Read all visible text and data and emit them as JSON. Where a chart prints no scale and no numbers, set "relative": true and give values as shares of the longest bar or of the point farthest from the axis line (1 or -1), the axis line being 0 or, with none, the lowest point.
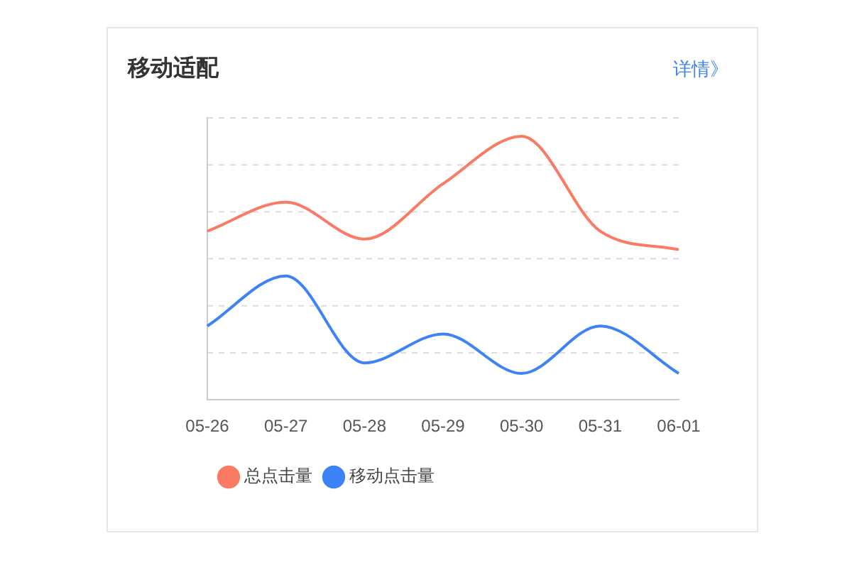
{
  "chart_data": {
    "type": "line",
    "title": "移动适配",
    "annotations": [
      "详情》"
    ],
    "relative": true,
    "categories": [
      "05-26",
      "05-27",
      "05-28",
      "05-29",
      "05-30",
      "05-31",
      "06-01"
    ],
    "series": [
      {
        "name": "总点击量",
        "color": "#fa7a63",
        "values": [
          0.64,
          0.75,
          0.61,
          0.82,
          1,
          0.64,
          0.57
        ]
      },
      {
        "name": "移动点击量",
        "color": "#3e82f7",
        "values": [
          0.28,
          0.47,
          0.14,
          0.25,
          0.1,
          0.28,
          0.1
        ]
      }
    ],
    "grid": "y",
    "legend": "bottom left",
    "marker": "none",
    "line_style": "solid"
  }
}
